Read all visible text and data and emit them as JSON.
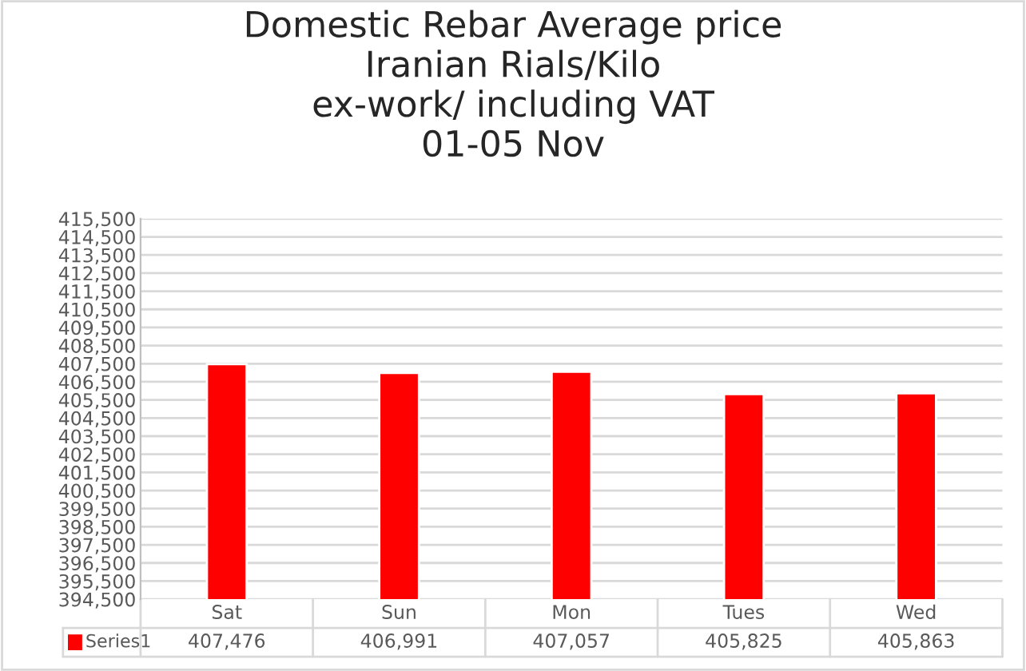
{
  "chart_data": {
    "type": "bar",
    "title": "Domestic Rebar Average price\nIranian Rials/Kilo\nex-work/ including VAT\n01-05 Nov",
    "categories": [
      "Sat",
      "Sun",
      "Mon",
      "Tues",
      "Wed"
    ],
    "series": [
      {
        "name": "Series1",
        "color": "#ff0000",
        "values": [
          407476,
          406991,
          407057,
          405825,
          405863
        ],
        "value_labels": [
          "407,476",
          "406,991",
          "407,057",
          "405,825",
          "405,863"
        ]
      }
    ],
    "ylim": [
      394500,
      415500
    ],
    "yticks": [
      {
        "value": 394500,
        "label": "394,500"
      },
      {
        "value": 395500,
        "label": "395,500"
      },
      {
        "value": 396500,
        "label": "396,500"
      },
      {
        "value": 397500,
        "label": "397,500"
      },
      {
        "value": 398500,
        "label": "398,500"
      },
      {
        "value": 399500,
        "label": "399,500"
      },
      {
        "value": 400500,
        "label": "400,500"
      },
      {
        "value": 401500,
        "label": "401,500"
      },
      {
        "value": 402500,
        "label": "402,500"
      },
      {
        "value": 403500,
        "label": "403,500"
      },
      {
        "value": 404500,
        "label": "404,500"
      },
      {
        "value": 405500,
        "label": "405,500"
      },
      {
        "value": 406500,
        "label": "406,500"
      },
      {
        "value": 407500,
        "label": "407,500"
      },
      {
        "value": 408500,
        "label": "408,500"
      },
      {
        "value": 409500,
        "label": "409,500"
      },
      {
        "value": 410500,
        "label": "410,500"
      },
      {
        "value": 411500,
        "label": "411,500"
      },
      {
        "value": 412500,
        "label": "412,500"
      },
      {
        "value": 413500,
        "label": "413,500"
      },
      {
        "value": 414500,
        "label": "414,500"
      },
      {
        "value": 415500,
        "label": "415,500"
      }
    ],
    "grid": "y",
    "legend": "bottom"
  }
}
